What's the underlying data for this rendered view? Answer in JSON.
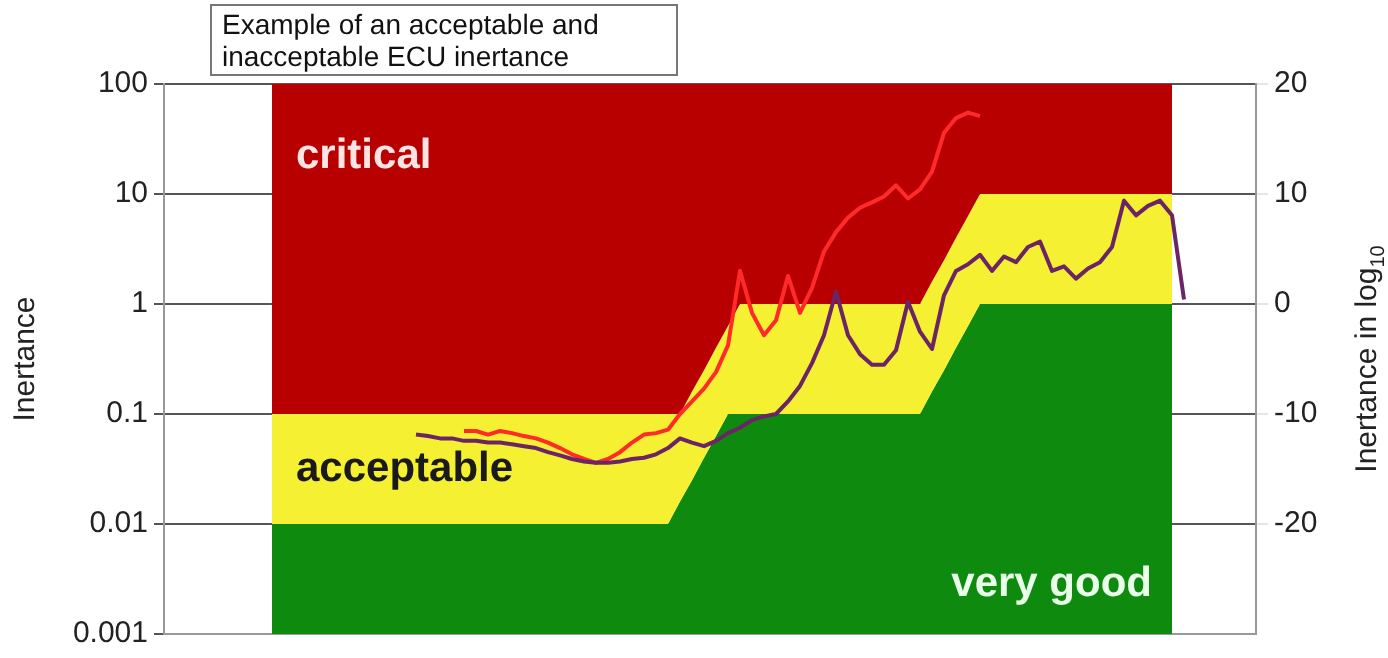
{
  "chart_data": {
    "type": "line",
    "categories": [
      null,
      null,
      null,
      null,
      null,
      null,
      null,
      null,
      null,
      null,
      null,
      null,
      null,
      null,
      null,
      null,
      null,
      null,
      null,
      null,
      null,
      null,
      null,
      null,
      null,
      null,
      null,
      null,
      null,
      null,
      null,
      null,
      null,
      null,
      null,
      null,
      null,
      null,
      null,
      null,
      null,
      null,
      null,
      null,
      null,
      null,
      null,
      null,
      null,
      null,
      null,
      null,
      null,
      null,
      null,
      null,
      null,
      null,
      null,
      null,
      null,
      null,
      null,
      null,
      null,
      null,
      null,
      null,
      null,
      null,
      null,
      null,
      null,
      null,
      null,
      null,
      null,
      null,
      null,
      null,
      null,
      null,
      null,
      null,
      null,
      null,
      null,
      null,
      null,
      null,
      null,
      null
    ],
    "series": [
      {
        "type": "area",
        "name": "very good",
        "color": "#0e8a0e",
        "values": [
          null,
          null,
          null,
          null,
          null,
          null,
          null,
          null,
          null,
          0.01,
          0.01,
          0.01,
          0.01,
          0.01,
          0.01,
          0.01,
          0.01,
          0.01,
          0.01,
          0.01,
          0.01,
          0.01,
          0.01,
          0.01,
          0.01,
          0.01,
          0.01,
          0.01,
          0.01,
          0.01,
          0.01,
          0.01,
          0.01,
          0.01,
          0.01,
          0.01,
          0.01,
          0.01,
          0.01,
          0.01,
          0.01,
          0.01,
          0.01,
          0.016,
          0.025,
          0.04,
          0.063,
          0.1,
          0.1,
          0.1,
          0.1,
          0.1,
          0.1,
          0.1,
          0.1,
          0.1,
          0.1,
          0.1,
          0.1,
          0.1,
          0.1,
          0.1,
          0.1,
          0.1,
          0.16,
          0.25,
          0.4,
          0.63,
          1,
          1,
          1,
          1,
          1,
          1,
          1,
          1,
          1,
          1,
          1,
          1,
          1,
          1,
          1,
          1,
          1,
          null,
          null,
          null,
          null,
          null,
          null,
          null
        ]
      },
      {
        "type": "area",
        "name": "acceptable",
        "color": "#f5f032",
        "values": [
          null,
          null,
          null,
          null,
          null,
          null,
          null,
          null,
          null,
          0.1,
          0.1,
          0.1,
          0.1,
          0.1,
          0.1,
          0.1,
          0.1,
          0.1,
          0.1,
          0.1,
          0.1,
          0.1,
          0.1,
          0.1,
          0.1,
          0.1,
          0.1,
          0.1,
          0.1,
          0.1,
          0.1,
          0.1,
          0.1,
          0.1,
          0.1,
          0.1,
          0.1,
          0.1,
          0.1,
          0.1,
          0.1,
          0.1,
          0.1,
          0.1,
          0.16,
          0.25,
          0.4,
          0.63,
          1,
          1,
          1,
          1,
          1,
          1,
          1,
          1,
          1,
          1,
          1,
          1,
          1,
          1,
          1,
          1,
          1.6,
          2.5,
          4,
          6.3,
          10,
          10,
          10,
          10,
          10,
          10,
          10,
          10,
          10,
          10,
          10,
          10,
          10,
          10,
          10,
          10,
          10,
          null,
          null,
          null,
          null,
          null,
          null,
          null
        ]
      },
      {
        "type": "area",
        "name": "critical",
        "color": "#b80000",
        "values": [
          null,
          null,
          null,
          null,
          null,
          null,
          null,
          null,
          null,
          100,
          100,
          100,
          100,
          100,
          100,
          100,
          100,
          100,
          100,
          100,
          100,
          100,
          100,
          100,
          100,
          100,
          100,
          100,
          100,
          100,
          100,
          100,
          100,
          100,
          100,
          100,
          100,
          100,
          100,
          100,
          100,
          100,
          100,
          100,
          100,
          100,
          100,
          100,
          100,
          100,
          100,
          100,
          100,
          100,
          100,
          100,
          100,
          100,
          100,
          100,
          100,
          100,
          100,
          100,
          100,
          100,
          100,
          100,
          100,
          100,
          100,
          100,
          100,
          100,
          100,
          100,
          100,
          100,
          100,
          100,
          100,
          100,
          100,
          100,
          100,
          null,
          null,
          null,
          null,
          null,
          null,
          null
        ]
      },
      {
        "color": "#ff2a2a",
        "values": [
          null,
          null,
          null,
          null,
          null,
          null,
          null,
          null,
          null,
          null,
          null,
          null,
          null,
          null,
          null,
          null,
          null,
          null,
          null,
          null,
          null,
          null,
          null,
          null,
          null,
          0.07,
          0.07,
          0.065,
          0.07,
          0.067,
          0.063,
          0.06,
          0.055,
          0.049,
          0.043,
          0.039,
          0.036,
          0.039,
          0.045,
          0.055,
          0.065,
          0.067,
          0.072,
          0.1,
          0.13,
          0.17,
          0.24,
          0.42,
          2,
          0.83,
          0.52,
          0.71,
          1.8,
          0.83,
          1.4,
          3,
          4.5,
          6.1,
          7.5,
          8.4,
          9.5,
          12,
          9.1,
          11,
          16,
          36,
          49,
          55,
          51,
          null,
          null,
          null,
          null,
          null,
          null,
          null,
          null,
          null,
          null,
          null,
          null,
          null,
          null,
          null,
          null,
          null,
          null,
          null,
          null,
          null,
          null,
          null
        ]
      },
      {
        "color": "#6b2466",
        "values": [
          null,
          null,
          null,
          null,
          null,
          null,
          null,
          null,
          null,
          null,
          null,
          null,
          null,
          null,
          null,
          null,
          null,
          null,
          null,
          null,
          null,
          0.065,
          0.063,
          0.06,
          0.06,
          0.057,
          0.057,
          0.055,
          0.055,
          0.053,
          0.051,
          0.049,
          0.045,
          0.042,
          0.039,
          0.037,
          0.036,
          0.036,
          0.037,
          0.039,
          0.04,
          0.043,
          0.049,
          0.06,
          0.055,
          0.051,
          0.057,
          0.067,
          0.075,
          0.088,
          0.095,
          0.1,
          0.13,
          0.18,
          0.29,
          0.52,
          1.3,
          0.52,
          0.35,
          0.28,
          0.28,
          0.38,
          1.05,
          0.56,
          0.39,
          1.2,
          2,
          2.3,
          2.8,
          2,
          2.7,
          2.4,
          3.3,
          3.7,
          2,
          2.2,
          1.7,
          2.1,
          2.4,
          3.3,
          8.7,
          6.4,
          7.8,
          8.7,
          6.4,
          1.1,
          null,
          null,
          null,
          null,
          null,
          null
        ]
      }
    ],
    "ylabel": "Inertance",
    "y2label": "Inertance in log$_{10}$",
    "log": "y",
    "ylim": [
      0.001,
      100
    ],
    "yticks": [
      0.001,
      0.01,
      0.1,
      1,
      10,
      100
    ],
    "y2lim": [
      -30,
      20
    ],
    "y2ticks": [
      -20,
      -10,
      0,
      10,
      20
    ],
    "grid": "y",
    "legend": false,
    "marker": "none",
    "annotations": [
      "Example of an acceptable and inacceptable ECU inertance"
    ]
  }
}
